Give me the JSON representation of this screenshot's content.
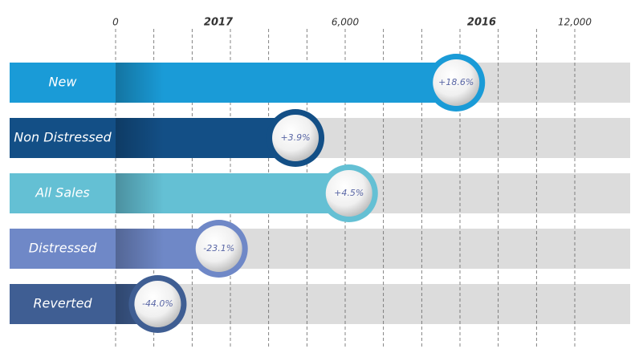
{
  "chart_data": {
    "type": "bar",
    "orientation": "horizontal",
    "annotations": [
      "2017",
      "2016"
    ],
    "categories": [
      "New",
      "Non Distressed",
      "All Sales",
      "Distressed",
      "Reverted"
    ],
    "values": [
      8900,
      4700,
      6100,
      2700,
      1100
    ],
    "badges": [
      "+18.6%",
      "+3.9%",
      "+4.5%",
      "-23.1%",
      "-44.0%"
    ],
    "colors": [
      "#1a9bd7",
      "#134f86",
      "#64c0d4",
      "#6f88c7",
      "#3f5e93"
    ],
    "xlim": [
      0,
      12000
    ],
    "xticks": [
      0,
      {
        "value": 6000,
        "label": "6,000"
      },
      {
        "value": 12000,
        "label": "12,000"
      }
    ],
    "xgrid": [
      0,
      1000,
      2000,
      3000,
      4000,
      5000,
      6000,
      7000,
      8000,
      9000,
      10000,
      11000,
      12000
    ],
    "grid": true
  }
}
